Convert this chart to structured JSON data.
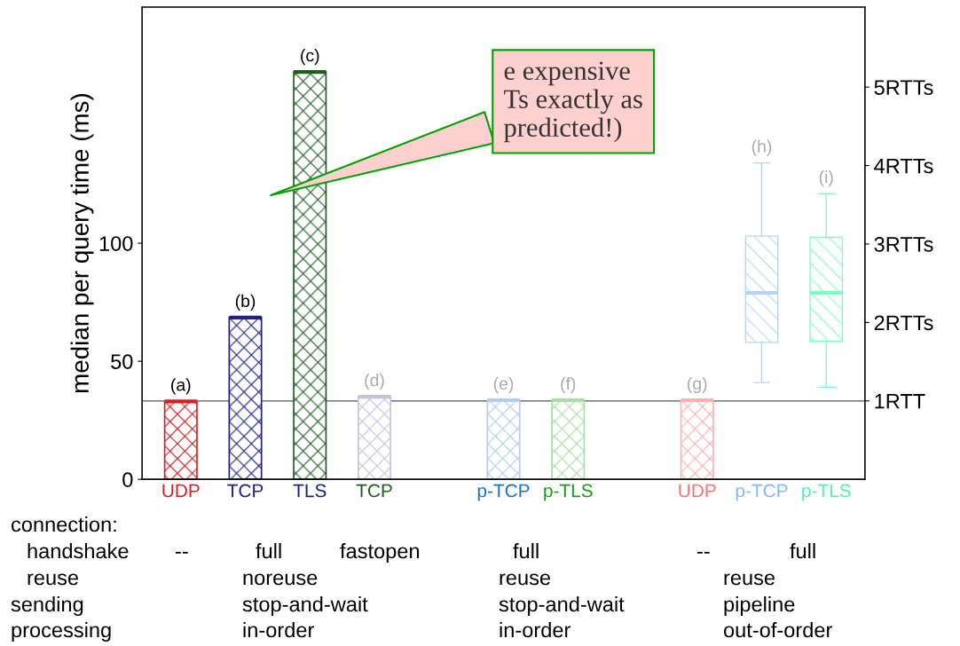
{
  "chart_data": {
    "type": "bar",
    "ylabel": "median per query time (ms)",
    "categories": [
      "UDP",
      "TCP",
      "TLS",
      "TCP",
      null,
      "p-TCP",
      "p-TLS",
      null,
      "UDP",
      "p-TCP",
      "p-TLS"
    ],
    "series": [
      {
        "colors": [
          "#d42020",
          "#202080",
          "#1e5e1e",
          "#c8c0e0",
          null,
          "#b0ccee",
          "#a8dca8",
          null,
          "#ffb0b0",
          null,
          null
        ],
        "values": [
          33,
          68.5,
          172.5,
          35,
          null,
          33.5,
          33.5,
          null,
          33.5,
          null,
          null
        ],
        "value_labels": [
          "(a)",
          "(b)",
          "(c)",
          "(d)",
          null,
          "(e)",
          "(f)",
          null,
          "(g)",
          null,
          null
        ]
      },
      {
        "type": "box",
        "colors": [
          null,
          null,
          null,
          null,
          null,
          null,
          null,
          null,
          null,
          "#b8d4f5",
          "#7dffc0"
        ],
        "boxes": [
          null,
          null,
          null,
          null,
          null,
          null,
          null,
          null,
          null,
          {
            "low": 41,
            "q1": 58,
            "median": 79,
            "q3": 103,
            "high": 134
          },
          {
            "low": 39,
            "q1": 58.5,
            "median": 79,
            "q3": 102.5,
            "high": 121
          }
        ],
        "value_labels": [
          null,
          null,
          null,
          null,
          null,
          null,
          null,
          null,
          null,
          "(h)",
          "(i)"
        ]
      }
    ],
    "ylim": [
      0,
      200
    ],
    "yticks": [
      0,
      50,
      100
    ],
    "y2lim": [
      0,
      6.02
    ],
    "y2ticks": [
      {
        "value": 1,
        "label": "1RTT"
      },
      {
        "value": 2,
        "label": "2RTTs"
      },
      {
        "value": 3,
        "label": "3RTTs"
      },
      {
        "value": 4,
        "label": "4RTTs"
      },
      {
        "value": 5,
        "label": "5RTTs"
      }
    ],
    "ref_lines": [
      {
        "axis": "y",
        "value": 33.2,
        "color": "#555555"
      }
    ],
    "annotations": [
      "e expensive\nTs exactly as\npredicted!)",
      "connection:",
      "handshake",
      "--",
      "full",
      "fastopen",
      "full",
      "--",
      "full",
      "reuse",
      "noreuse",
      "reuse",
      "reuse",
      "sending",
      "stop-and-wait",
      "stop-and-wait",
      "pipeline",
      "processing",
      "in-order",
      "in-order",
      "out-of-order"
    ]
  }
}
